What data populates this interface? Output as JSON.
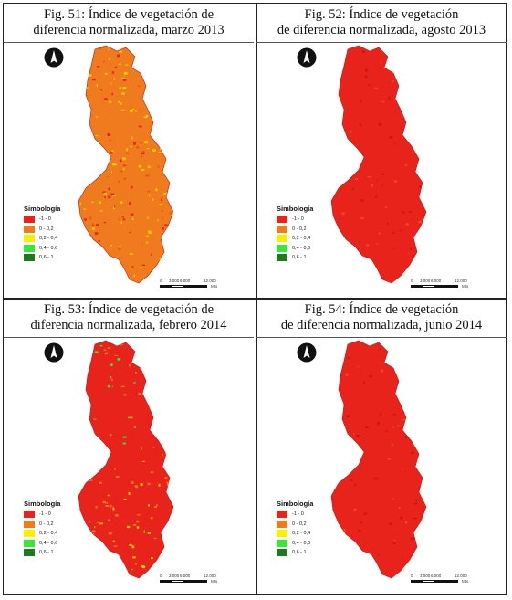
{
  "figures": [
    {
      "title_line1": "Fig. 51: Índice de vegetación de",
      "title_line2": "diferencia normalizada, marzo 2013",
      "pattern": "mixed"
    },
    {
      "title_line1": "Fig. 52: Índice de vegetación",
      "title_line2": "de diferencia normalizada, agosto 2013",
      "pattern": "red"
    },
    {
      "title_line1": "Fig. 53: Índice de vegetación de",
      "title_line2": "diferencia normalizada, febrero 2014",
      "pattern": "green"
    },
    {
      "title_line1": "Fig. 54: Índice de vegetación",
      "title_line2": "de diferencia normalizada, junio 2014",
      "pattern": "red"
    }
  ],
  "legend": {
    "title": "Simbología",
    "classes": [
      {
        "label": "-1 - 0",
        "color": "#e8231c"
      },
      {
        "label": "0 - 0,2",
        "color": "#f07a1e"
      },
      {
        "label": "0,2 - 0,4",
        "color": "#f7f000"
      },
      {
        "label": "0,4 - 0,6",
        "color": "#39e63a"
      },
      {
        "label": "0,6 - 1",
        "color": "#1f7a1f"
      }
    ]
  },
  "scale": {
    "ticks": [
      "0",
      "3.000",
      "6.000",
      "12.000"
    ],
    "unit": "Mts"
  },
  "colors": {
    "map_red": "#e8231c",
    "map_orange": "#f07a1e",
    "map_yellow": "#f4d000",
    "map_green": "#39e63a"
  }
}
